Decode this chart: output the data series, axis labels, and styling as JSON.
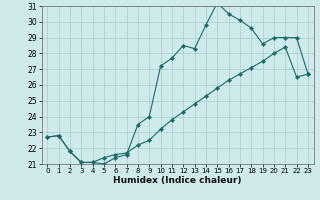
{
  "title": "",
  "xlabel": "Humidex (Indice chaleur)",
  "bg_color": "#ceeaea",
  "line_color": "#1a6b6b",
  "grid_color": "#a8cccc",
  "ylim": [
    21,
    31
  ],
  "xlim": [
    -0.5,
    23.5
  ],
  "yticks": [
    21,
    22,
    23,
    24,
    25,
    26,
    27,
    28,
    29,
    30,
    31
  ],
  "xticks": [
    0,
    1,
    2,
    3,
    4,
    5,
    6,
    7,
    8,
    9,
    10,
    11,
    12,
    13,
    14,
    15,
    16,
    17,
    18,
    19,
    20,
    21,
    22,
    23
  ],
  "line1_x": [
    0,
    1,
    2,
    3,
    4,
    5,
    6,
    7,
    8,
    9,
    10,
    11,
    12,
    13,
    14,
    15,
    16,
    17,
    18,
    19,
    20,
    21,
    22,
    23
  ],
  "line1_y": [
    22.7,
    22.8,
    21.8,
    21.1,
    21.1,
    21.0,
    21.4,
    21.6,
    23.5,
    24.0,
    27.2,
    27.7,
    28.5,
    28.3,
    29.8,
    31.2,
    30.5,
    30.1,
    29.6,
    28.6,
    29.0,
    29.0,
    29.0,
    26.7
  ],
  "line2_x": [
    0,
    1,
    2,
    3,
    4,
    5,
    6,
    7,
    8,
    9,
    10,
    11,
    12,
    13,
    14,
    15,
    16,
    17,
    18,
    19,
    20,
    21,
    22,
    23
  ],
  "line2_y": [
    22.7,
    22.8,
    21.8,
    21.1,
    21.1,
    21.4,
    21.6,
    21.7,
    22.2,
    22.5,
    23.2,
    23.8,
    24.3,
    24.8,
    25.3,
    25.8,
    26.3,
    26.7,
    27.1,
    27.5,
    28.0,
    28.4,
    26.5,
    26.7
  ]
}
